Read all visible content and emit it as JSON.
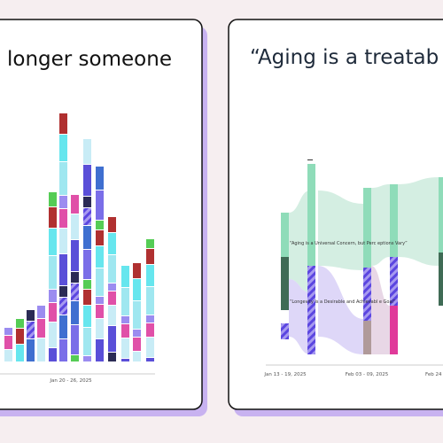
{
  "left_card": {
    "title": "longer someone",
    "x_label": "Jan 20 - 26, 2025"
  },
  "right_card": {
    "title": "“Aging is a treatab",
    "annotations": [
      "“Aging is a Universal Concern, but Perc eptions Vary”",
      "“Longevity is a Desirable and Achievabl e Goal”"
    ],
    "x_labels": [
      "Jan 13 - 19, 2025",
      "Feb 03 - 09, 2025",
      "Feb 24"
    ]
  }
}
